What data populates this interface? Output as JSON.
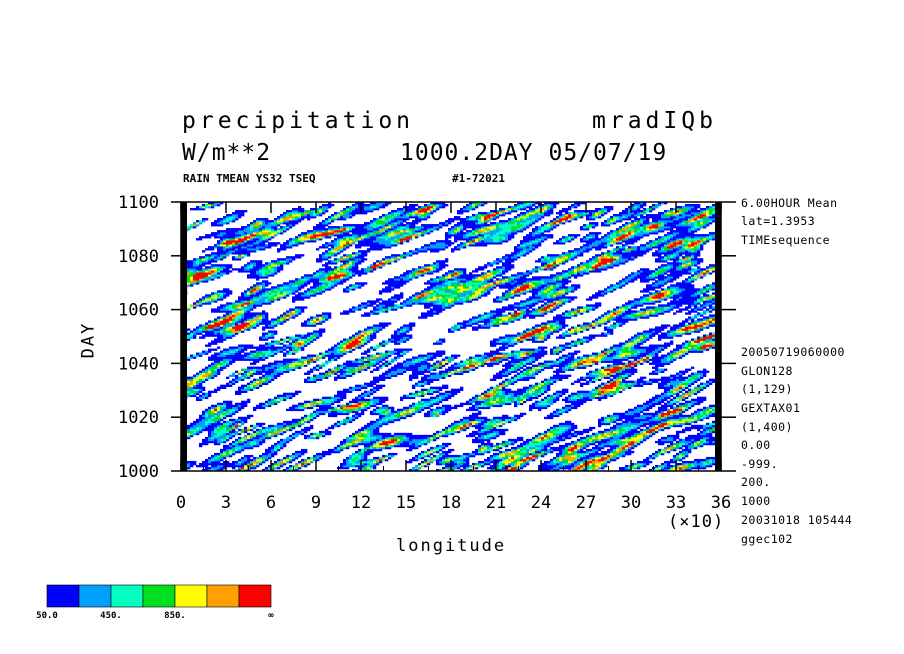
{
  "header": {
    "title_left": "precipitation",
    "title_right": "mradIQb",
    "units": "W/m**2",
    "day_date": "1000.2DAY 05/07/19",
    "subtitle": "RAIN TMEAN YS32 TSEQ",
    "run_id": "#1-72021"
  },
  "side_info": {
    "top": [
      "6.00HOUR Mean",
      "lat=1.3953",
      "TIMEsequence"
    ],
    "bottom": [
      "20050719060000",
      "GLON128",
      "(1,129)",
      "GEXTAX01",
      "(1,400)",
      "0.00",
      "-999.",
      "200.",
      "1000",
      "20031018 105444",
      "ggec102"
    ]
  },
  "chart_data": {
    "type": "heatmap",
    "xlabel": "longitude",
    "ylabel": "DAY",
    "x_multiplier": "(×10)",
    "xlim": [
      0,
      360
    ],
    "ylim": [
      1000,
      1100
    ],
    "x_ticks": [
      "0",
      "3",
      "6",
      "9",
      "12",
      "15",
      "18",
      "21",
      "24",
      "27",
      "30",
      "33",
      "36"
    ],
    "y_ticks": [
      "1000",
      "1020",
      "1040",
      "1060",
      "1080",
      "1100"
    ],
    "contour_levels": [
      50,
      250,
      450,
      650,
      850,
      1050,
      1250
    ],
    "legend_labels": [
      "50.0",
      "450.",
      "850.",
      "∞"
    ],
    "colors": [
      "#0000ff",
      "#00a0ff",
      "#00ffc0",
      "#00e020",
      "#ffff00",
      "#ffa000",
      "#ff0000"
    ],
    "field_description_note": "synthetic eastward-propagating precipitation streaks"
  }
}
